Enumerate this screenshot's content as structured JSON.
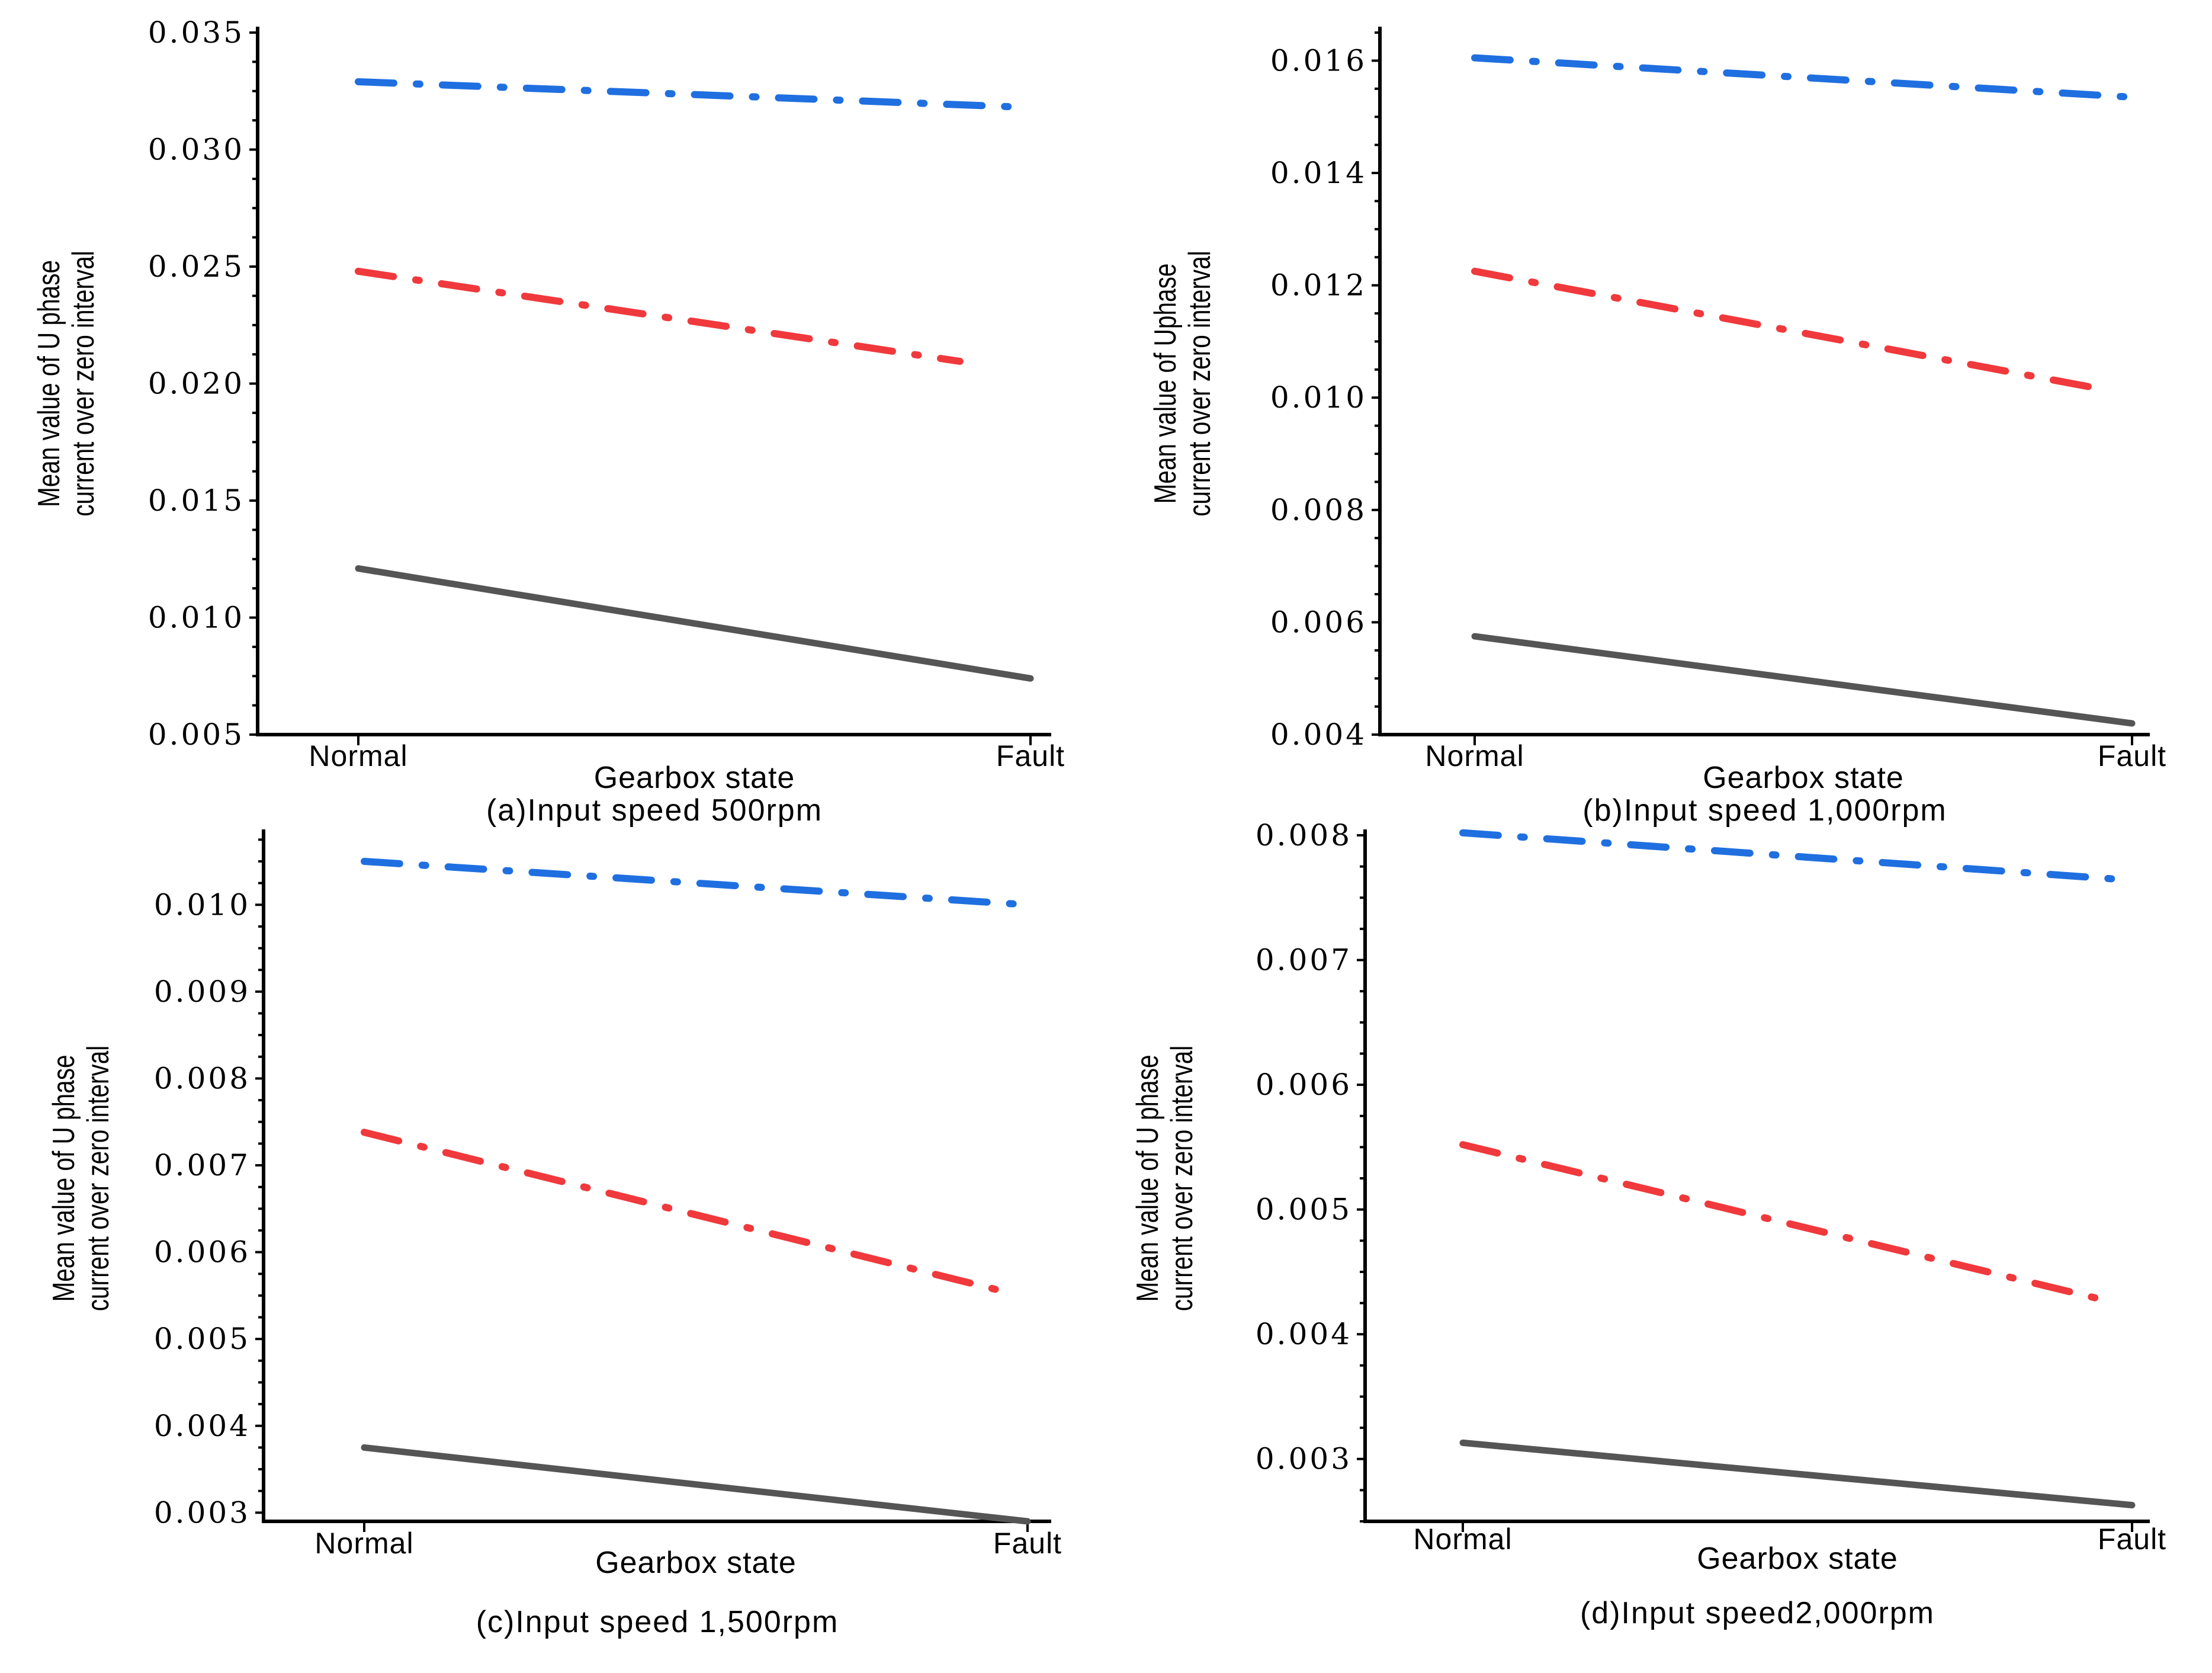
{
  "figure_panels": [
    "a",
    "b",
    "c",
    "d"
  ],
  "chart_data": [
    {
      "type": "line",
      "caption": "(a)Input speed 500rpm",
      "xlabel": "Gearbox state",
      "ylabel": [
        "Mean value of U phase",
        "current over zero interval"
      ],
      "categories": [
        "Normal",
        "Fault"
      ],
      "ylim": [
        0.005,
        0.035
      ],
      "yticks": [
        "0.005",
        "0.010",
        "0.015",
        "0.020",
        "0.025",
        "0.030",
        "0.035"
      ],
      "series": [
        {
          "style": "dash-dot",
          "color": "#1f6fe0",
          "values": [
            0.0329,
            0.0318
          ],
          "end_fraction": 1.0
        },
        {
          "style": "dash-dot",
          "color": "#f0393c",
          "values": [
            0.0248,
            0.0205
          ],
          "end_fraction": 0.895
        },
        {
          "style": "solid",
          "color": "#555555",
          "values": [
            0.0121,
            0.0074
          ],
          "end_fraction": 1.0
        }
      ]
    },
    {
      "type": "line",
      "caption": "(b)Input speed  1,000rpm",
      "xlabel": "Gearbox state",
      "ylabel": [
        "Mean value of Uphase",
        "current over zero interval"
      ],
      "categories": [
        "Normal",
        "Fault"
      ],
      "ylim": [
        0.004,
        0.0165
      ],
      "yticks": [
        "0.004",
        "0.006",
        "0.008",
        "0.010",
        "0.012",
        "0.014",
        "0.016"
      ],
      "series": [
        {
          "style": "dash-dot",
          "color": "#1f6fe0",
          "values": [
            0.01605,
            0.01535
          ],
          "end_fraction": 1.0
        },
        {
          "style": "dash-dot",
          "color": "#f0393c",
          "values": [
            0.01225,
            0.01005
          ],
          "end_fraction": 0.96
        },
        {
          "style": "solid",
          "color": "#555555",
          "values": [
            0.00575,
            0.0042
          ],
          "end_fraction": 1.0
        }
      ]
    },
    {
      "type": "line",
      "caption": "(c)Input speed 1,500rpm",
      "xlabel": "Gearbox state",
      "ylabel": [
        "Mean value of U phase",
        "current over zero interval"
      ],
      "categories": [
        "Normal",
        "Fault"
      ],
      "ylim": [
        0.0029,
        0.0108
      ],
      "yticks": [
        "0.003",
        "0.004",
        "0.005",
        "0.006",
        "0.007",
        "0.008",
        "0.009",
        "0.010"
      ],
      "series": [
        {
          "style": "dash-dot",
          "color": "#1f6fe0",
          "values": [
            0.0105,
            0.01
          ],
          "end_fraction": 1.0
        },
        {
          "style": "dash-dot",
          "color": "#f0393c",
          "values": [
            0.00738,
            0.00548
          ],
          "end_fraction": 0.97
        },
        {
          "style": "solid",
          "color": "#555555",
          "values": [
            0.00375,
            0.0029
          ],
          "end_fraction": 1.0
        }
      ]
    },
    {
      "type": "line",
      "caption": "(d)Input speed2,000rpm",
      "xlabel": "Gearbox state",
      "ylabel": [
        "Mean value of U phase",
        "current over zero interval"
      ],
      "categories": [
        "Normal",
        "Fault"
      ],
      "ylim": [
        0.0025,
        0.008
      ],
      "yticks": [
        "0.003",
        "0.004",
        "0.005",
        "0.006",
        "0.007",
        "0.008"
      ],
      "series": [
        {
          "style": "dash-dot",
          "color": "#1f6fe0",
          "values": [
            0.00802,
            0.00764
          ],
          "end_fraction": 1.0
        },
        {
          "style": "dash-dot",
          "color": "#f0393c",
          "values": [
            0.00552,
            0.00422
          ],
          "end_fraction": 0.97
        },
        {
          "style": "solid",
          "color": "#555555",
          "values": [
            0.00313,
            0.00263
          ],
          "end_fraction": 1.0
        }
      ]
    }
  ]
}
